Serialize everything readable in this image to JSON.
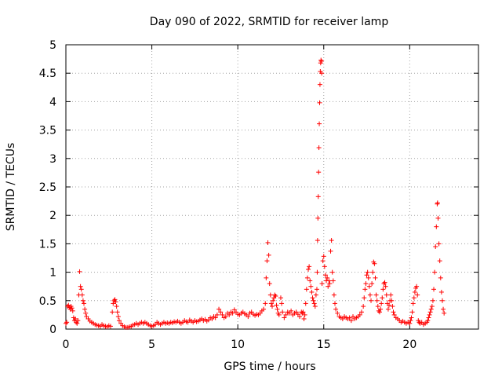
{
  "chart_data": {
    "type": "scatter",
    "title": "Day 090 of 2022, SRMTID for receiver lamp",
    "xlabel": "GPS time / hours",
    "ylabel": "SRMTID / TECUs",
    "xlim": [
      0,
      24
    ],
    "ylim": [
      0,
      5
    ],
    "xticks": [
      0,
      5,
      10,
      15,
      20
    ],
    "xtick_labels": [
      "0",
      "5",
      "10",
      "15",
      "20"
    ],
    "yticks": [
      0,
      0.5,
      1,
      1.5,
      2,
      2.5,
      3,
      3.5,
      4,
      4.5,
      5
    ],
    "ytick_labels": [
      "0",
      "0.5",
      "1",
      "1.5",
      "2",
      "2.5",
      "3",
      "3.5",
      "4",
      "4.5",
      "5"
    ],
    "grid": true,
    "marker": "+",
    "color": "#ff0000",
    "series": [
      {
        "name": "SRMTID",
        "points": [
          [
            0.0,
            0.1
          ],
          [
            0.05,
            0.12
          ],
          [
            0.1,
            0.4
          ],
          [
            0.15,
            0.42
          ],
          [
            0.2,
            0.38
          ],
          [
            0.25,
            0.35
          ],
          [
            0.3,
            0.4
          ],
          [
            0.35,
            0.37
          ],
          [
            0.4,
            0.32
          ],
          [
            0.45,
            0.2
          ],
          [
            0.5,
            0.15
          ],
          [
            0.55,
            0.18
          ],
          [
            0.6,
            0.12
          ],
          [
            0.65,
            0.1
          ],
          [
            0.7,
            0.15
          ],
          [
            0.75,
            0.6
          ],
          [
            0.8,
            1.01
          ],
          [
            0.85,
            0.75
          ],
          [
            0.9,
            0.7
          ],
          [
            0.95,
            0.6
          ],
          [
            1.0,
            0.5
          ],
          [
            1.05,
            0.45
          ],
          [
            1.1,
            0.35
          ],
          [
            1.15,
            0.28
          ],
          [
            1.2,
            0.22
          ],
          [
            1.3,
            0.18
          ],
          [
            1.4,
            0.14
          ],
          [
            1.5,
            0.12
          ],
          [
            1.6,
            0.1
          ],
          [
            1.7,
            0.08
          ],
          [
            1.8,
            0.07
          ],
          [
            1.9,
            0.06
          ],
          [
            2.0,
            0.05
          ],
          [
            2.1,
            0.08
          ],
          [
            2.2,
            0.06
          ],
          [
            2.3,
            0.05
          ],
          [
            2.4,
            0.04
          ],
          [
            2.5,
            0.06
          ],
          [
            2.6,
            0.05
          ],
          [
            2.7,
            0.3
          ],
          [
            2.75,
            0.45
          ],
          [
            2.8,
            0.5
          ],
          [
            2.85,
            0.52
          ],
          [
            2.9,
            0.48
          ],
          [
            2.95,
            0.4
          ],
          [
            3.0,
            0.3
          ],
          [
            3.05,
            0.22
          ],
          [
            3.1,
            0.15
          ],
          [
            3.2,
            0.1
          ],
          [
            3.3,
            0.06
          ],
          [
            3.4,
            0.04
          ],
          [
            3.5,
            0.03
          ],
          [
            3.6,
            0.03
          ],
          [
            3.7,
            0.04
          ],
          [
            3.8,
            0.05
          ],
          [
            3.9,
            0.07
          ],
          [
            4.0,
            0.08
          ],
          [
            4.1,
            0.1
          ],
          [
            4.2,
            0.08
          ],
          [
            4.3,
            0.1
          ],
          [
            4.4,
            0.12
          ],
          [
            4.5,
            0.1
          ],
          [
            4.6,
            0.12
          ],
          [
            4.7,
            0.1
          ],
          [
            4.8,
            0.08
          ],
          [
            4.9,
            0.06
          ],
          [
            5.0,
            0.05
          ],
          [
            5.1,
            0.06
          ],
          [
            5.2,
            0.08
          ],
          [
            5.3,
            0.12
          ],
          [
            5.4,
            0.1
          ],
          [
            5.5,
            0.08
          ],
          [
            5.6,
            0.1
          ],
          [
            5.7,
            0.12
          ],
          [
            5.8,
            0.1
          ],
          [
            5.9,
            0.11
          ],
          [
            6.0,
            0.1
          ],
          [
            6.1,
            0.12
          ],
          [
            6.2,
            0.11
          ],
          [
            6.3,
            0.13
          ],
          [
            6.4,
            0.12
          ],
          [
            6.5,
            0.14
          ],
          [
            6.6,
            0.12
          ],
          [
            6.7,
            0.1
          ],
          [
            6.8,
            0.12
          ],
          [
            6.9,
            0.15
          ],
          [
            7.0,
            0.13
          ],
          [
            7.1,
            0.12
          ],
          [
            7.2,
            0.16
          ],
          [
            7.3,
            0.14
          ],
          [
            7.4,
            0.12
          ],
          [
            7.5,
            0.15
          ],
          [
            7.6,
            0.13
          ],
          [
            7.7,
            0.14
          ],
          [
            7.8,
            0.16
          ],
          [
            7.9,
            0.18
          ],
          [
            8.0,
            0.15
          ],
          [
            8.1,
            0.17
          ],
          [
            8.2,
            0.14
          ],
          [
            8.3,
            0.16
          ],
          [
            8.4,
            0.2
          ],
          [
            8.5,
            0.18
          ],
          [
            8.6,
            0.22
          ],
          [
            8.7,
            0.2
          ],
          [
            8.8,
            0.25
          ],
          [
            8.9,
            0.35
          ],
          [
            9.0,
            0.3
          ],
          [
            9.1,
            0.25
          ],
          [
            9.2,
            0.2
          ],
          [
            9.3,
            0.22
          ],
          [
            9.4,
            0.28
          ],
          [
            9.5,
            0.25
          ],
          [
            9.6,
            0.3
          ],
          [
            9.7,
            0.28
          ],
          [
            9.8,
            0.34
          ],
          [
            9.9,
            0.3
          ],
          [
            10.0,
            0.26
          ],
          [
            10.1,
            0.25
          ],
          [
            10.2,
            0.28
          ],
          [
            10.3,
            0.3
          ],
          [
            10.4,
            0.27
          ],
          [
            10.5,
            0.25
          ],
          [
            10.6,
            0.22
          ],
          [
            10.7,
            0.28
          ],
          [
            10.8,
            0.3
          ],
          [
            10.9,
            0.26
          ],
          [
            11.0,
            0.24
          ],
          [
            11.1,
            0.26
          ],
          [
            11.2,
            0.25
          ],
          [
            11.3,
            0.28
          ],
          [
            11.4,
            0.32
          ],
          [
            11.5,
            0.35
          ],
          [
            11.6,
            0.45
          ],
          [
            11.65,
            0.9
          ],
          [
            11.7,
            1.2
          ],
          [
            11.75,
            1.52
          ],
          [
            11.8,
            1.3
          ],
          [
            11.85,
            0.8
          ],
          [
            11.9,
            0.6
          ],
          [
            11.95,
            0.45
          ],
          [
            12.0,
            0.4
          ],
          [
            12.05,
            0.5
          ],
          [
            12.1,
            0.55
          ],
          [
            12.15,
            0.6
          ],
          [
            12.2,
            0.58
          ],
          [
            12.25,
            0.42
          ],
          [
            12.3,
            0.35
          ],
          [
            12.35,
            0.28
          ],
          [
            12.4,
            0.25
          ],
          [
            12.5,
            0.55
          ],
          [
            12.55,
            0.45
          ],
          [
            12.6,
            0.3
          ],
          [
            12.7,
            0.2
          ],
          [
            12.8,
            0.25
          ],
          [
            12.9,
            0.3
          ],
          [
            13.0,
            0.28
          ],
          [
            13.1,
            0.32
          ],
          [
            13.2,
            0.25
          ],
          [
            13.3,
            0.28
          ],
          [
            13.4,
            0.3
          ],
          [
            13.5,
            0.26
          ],
          [
            13.6,
            0.22
          ],
          [
            13.7,
            0.3
          ],
          [
            13.75,
            0.28
          ],
          [
            13.8,
            0.3
          ],
          [
            13.85,
            0.18
          ],
          [
            13.9,
            0.25
          ],
          [
            13.95,
            0.45
          ],
          [
            14.0,
            0.7
          ],
          [
            14.05,
            0.9
          ],
          [
            14.1,
            1.05
          ],
          [
            14.15,
            1.1
          ],
          [
            14.2,
            0.85
          ],
          [
            14.25,
            0.75
          ],
          [
            14.3,
            0.65
          ],
          [
            14.35,
            0.55
          ],
          [
            14.4,
            0.5
          ],
          [
            14.45,
            0.45
          ],
          [
            14.5,
            0.4
          ],
          [
            14.55,
            0.6
          ],
          [
            14.6,
            0.7
          ],
          [
            14.62,
            1.0
          ],
          [
            14.64,
            1.56
          ],
          [
            14.66,
            1.95
          ],
          [
            14.68,
            2.33
          ],
          [
            14.7,
            2.76
          ],
          [
            14.72,
            3.19
          ],
          [
            14.74,
            3.61
          ],
          [
            14.76,
            3.98
          ],
          [
            14.78,
            4.3
          ],
          [
            14.8,
            4.53
          ],
          [
            14.82,
            4.68
          ],
          [
            14.84,
            4.73
          ],
          [
            14.86,
            4.71
          ],
          [
            14.88,
            4.5
          ],
          [
            14.9,
            0.8
          ],
          [
            14.95,
            1.2
          ],
          [
            15.0,
            1.28
          ],
          [
            15.05,
            1.1
          ],
          [
            15.1,
            0.95
          ],
          [
            15.15,
            0.85
          ],
          [
            15.2,
            0.9
          ],
          [
            15.25,
            0.75
          ],
          [
            15.3,
            0.85
          ],
          [
            15.35,
            0.8
          ],
          [
            15.4,
            1.37
          ],
          [
            15.45,
            1.56
          ],
          [
            15.5,
            1.0
          ],
          [
            15.55,
            0.85
          ],
          [
            15.6,
            0.6
          ],
          [
            15.65,
            0.45
          ],
          [
            15.7,
            0.35
          ],
          [
            15.8,
            0.28
          ],
          [
            15.9,
            0.22
          ],
          [
            16.0,
            0.2
          ],
          [
            16.1,
            0.18
          ],
          [
            16.2,
            0.22
          ],
          [
            16.3,
            0.2
          ],
          [
            16.4,
            0.18
          ],
          [
            16.5,
            0.2
          ],
          [
            16.6,
            0.15
          ],
          [
            16.7,
            0.22
          ],
          [
            16.8,
            0.18
          ],
          [
            16.9,
            0.2
          ],
          [
            17.0,
            0.22
          ],
          [
            17.1,
            0.25
          ],
          [
            17.2,
            0.3
          ],
          [
            17.3,
            0.4
          ],
          [
            17.35,
            0.55
          ],
          [
            17.4,
            0.7
          ],
          [
            17.45,
            0.8
          ],
          [
            17.5,
            0.95
          ],
          [
            17.55,
            1.0
          ],
          [
            17.6,
            0.9
          ],
          [
            17.65,
            0.75
          ],
          [
            17.7,
            0.6
          ],
          [
            17.75,
            0.5
          ],
          [
            17.8,
            0.8
          ],
          [
            17.85,
            1.0
          ],
          [
            17.9,
            1.18
          ],
          [
            17.95,
            1.15
          ],
          [
            18.0,
            0.9
          ],
          [
            18.05,
            0.6
          ],
          [
            18.1,
            0.5
          ],
          [
            18.15,
            0.4
          ],
          [
            18.2,
            0.32
          ],
          [
            18.25,
            0.3
          ],
          [
            18.3,
            0.35
          ],
          [
            18.35,
            0.45
          ],
          [
            18.4,
            0.55
          ],
          [
            18.45,
            0.7
          ],
          [
            18.5,
            0.8
          ],
          [
            18.55,
            0.82
          ],
          [
            18.6,
            0.75
          ],
          [
            18.65,
            0.6
          ],
          [
            18.7,
            0.45
          ],
          [
            18.75,
            0.35
          ],
          [
            18.8,
            0.42
          ],
          [
            18.85,
            0.5
          ],
          [
            18.9,
            0.6
          ],
          [
            18.95,
            0.5
          ],
          [
            19.0,
            0.4
          ],
          [
            19.05,
            0.3
          ],
          [
            19.1,
            0.25
          ],
          [
            19.2,
            0.2
          ],
          [
            19.3,
            0.18
          ],
          [
            19.4,
            0.15
          ],
          [
            19.5,
            0.12
          ],
          [
            19.6,
            0.14
          ],
          [
            19.7,
            0.12
          ],
          [
            19.8,
            0.1
          ],
          [
            19.9,
            0.12
          ],
          [
            20.0,
            0.1
          ],
          [
            20.05,
            0.15
          ],
          [
            20.1,
            0.2
          ],
          [
            20.15,
            0.3
          ],
          [
            20.2,
            0.45
          ],
          [
            20.25,
            0.55
          ],
          [
            20.3,
            0.65
          ],
          [
            20.35,
            0.72
          ],
          [
            20.4,
            0.75
          ],
          [
            20.45,
            0.6
          ],
          [
            20.5,
            0.15
          ],
          [
            20.55,
            0.12
          ],
          [
            20.6,
            0.1
          ],
          [
            20.7,
            0.12
          ],
          [
            20.8,
            0.08
          ],
          [
            20.9,
            0.1
          ],
          [
            21.0,
            0.12
          ],
          [
            21.05,
            0.15
          ],
          [
            21.1,
            0.2
          ],
          [
            21.15,
            0.25
          ],
          [
            21.2,
            0.3
          ],
          [
            21.25,
            0.35
          ],
          [
            21.3,
            0.4
          ],
          [
            21.35,
            0.5
          ],
          [
            21.4,
            0.7
          ],
          [
            21.45,
            1.0
          ],
          [
            21.5,
            1.45
          ],
          [
            21.55,
            1.8
          ],
          [
            21.6,
            2.2
          ],
          [
            21.62,
            2.22
          ],
          [
            21.65,
            1.95
          ],
          [
            21.7,
            1.5
          ],
          [
            21.75,
            1.2
          ],
          [
            21.8,
            0.9
          ],
          [
            21.85,
            0.65
          ],
          [
            21.9,
            0.5
          ],
          [
            21.95,
            0.35
          ],
          [
            22.0,
            0.28
          ]
        ]
      }
    ]
  }
}
